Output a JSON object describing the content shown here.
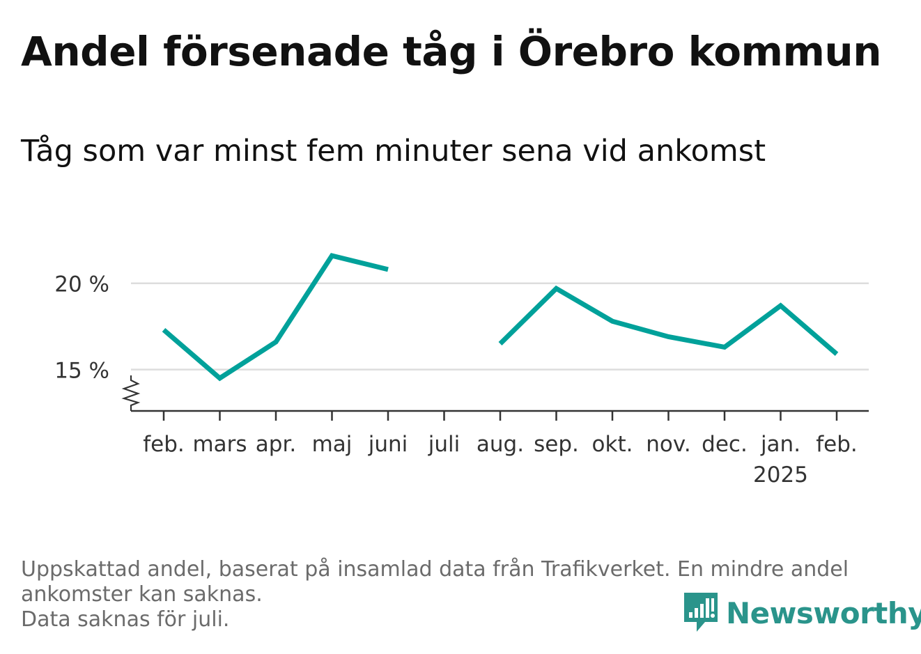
{
  "title": "Andel försenade tåg i Örebro kommun",
  "subtitle": "Tåg som var minst fem minuter sena vid ankomst",
  "footnote": {
    "line1": "Uppskattad andel, baserat på insamlad data från Trafikverket. En mindre andel",
    "line2": "ankomster kan saknas.",
    "line3": "Data saknas för juli."
  },
  "brand": {
    "name": "Newsworthy",
    "icon": "newsworthy-logo-icon",
    "color": "#2a948b"
  },
  "chart_data": {
    "type": "line",
    "categories": [
      "feb.",
      "mars",
      "apr.",
      "maj",
      "juni",
      "juli",
      "aug.",
      "sep.",
      "okt.",
      "nov.",
      "dec.",
      "jan.",
      "feb."
    ],
    "year_label": {
      "category_index": 11,
      "text": "2025"
    },
    "series": [
      {
        "values": [
          17.3,
          14.5,
          16.6,
          21.6,
          20.8,
          null,
          16.5,
          19.7,
          17.8,
          16.9,
          16.3,
          18.7,
          15.9
        ],
        "color": "#00a19a"
      }
    ],
    "y_ticks": [
      {
        "value": 15,
        "label": "15 %"
      },
      {
        "value": 20,
        "label": "20 %"
      }
    ],
    "ylim": [
      12.2,
      23.5
    ],
    "grid": true,
    "axis_break": true,
    "grid_color": "#dddddd",
    "axis_color": "#333333"
  }
}
